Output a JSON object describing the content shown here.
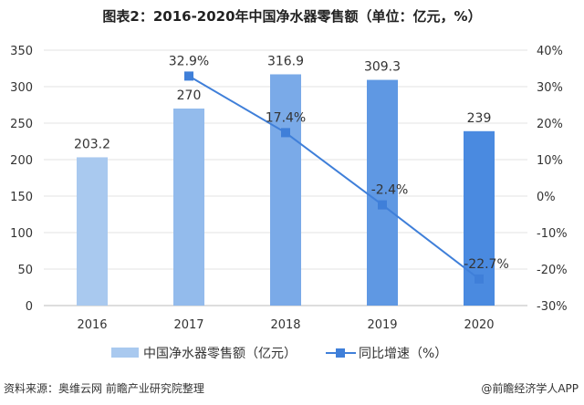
{
  "title": "图表2：2016-2020年中国净水器零售额（单位：亿元，%）",
  "source": "资料来源：奥维云网 前瞻产业研究院整理",
  "credit": "@前瞻经济学人APP",
  "chart_data": {
    "type": "bar",
    "categories": [
      "2016",
      "2017",
      "2018",
      "2019",
      "2020"
    ],
    "series": [
      {
        "name": "中国净水器零售额（亿元）",
        "type": "bar",
        "axis": "left",
        "values": [
          203.2,
          270,
          316.9,
          309.3,
          239
        ],
        "labels": [
          "203.2",
          "270",
          "316.9",
          "309.3",
          "239"
        ]
      },
      {
        "name": "同比增速（%）",
        "type": "line",
        "axis": "right",
        "values": [
          null,
          32.9,
          17.4,
          -2.4,
          -22.7
        ],
        "labels": [
          "",
          "32.9%",
          "17.4%",
          "-2.4%",
          "-22.7%"
        ]
      }
    ],
    "left_axis": {
      "ylim": [
        0,
        350
      ],
      "ticks": [
        "0",
        "50",
        "100",
        "150",
        "200",
        "250",
        "300",
        "350"
      ]
    },
    "right_axis": {
      "ylim": [
        -30,
        40
      ],
      "ticks": [
        "-30%",
        "-20%",
        "-10%",
        "0%",
        "10%",
        "20%",
        "30%",
        "40%"
      ]
    },
    "grid": true,
    "legend": "bottom",
    "colors": {
      "bars": [
        "#a9c9ef",
        "#93bbec",
        "#7aaae8",
        "#5f98e3",
        "#4a8ae0"
      ],
      "line": "#3f7fd9"
    }
  }
}
